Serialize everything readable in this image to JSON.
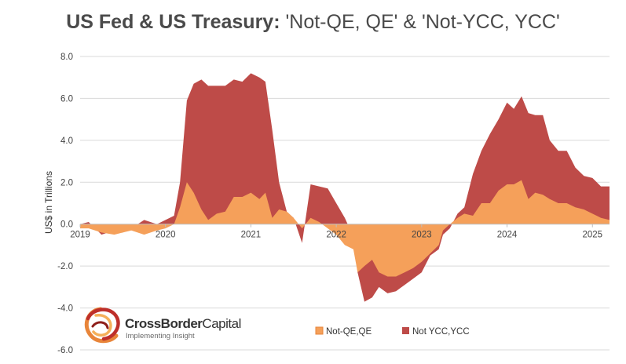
{
  "title": {
    "bold": "US Fed & US Treasury:",
    "rest": " 'Not-QE, QE' & 'Not-YCC, YCC'"
  },
  "logo": {
    "name_bold": "CrossBorder",
    "name_light": "Capital",
    "tagline": "Implementing Insight"
  },
  "colors": {
    "qe": "#F5A05A",
    "qe_edge": "#E8853A",
    "ycc": "#BE4B48",
    "grid": "#d9d9d9",
    "zero_axis": "#bfbfbf"
  },
  "chart_data": {
    "type": "area",
    "title": "US Fed & US Treasury: 'Not-QE, QE' & 'Not-YCC, YCC'",
    "ylabel": "US$ in Trillions",
    "xlabel": "",
    "ylim": [
      -6,
      8
    ],
    "xlim": [
      2019.0,
      2025.2
    ],
    "yticks": [
      "8.0",
      "6.0",
      "4.0",
      "2.0",
      "0.0",
      "-2.0",
      "-4.0",
      "-6.0"
    ],
    "xticks": [
      "2019",
      "2020",
      "2021",
      "2022",
      "2023",
      "2024",
      "2025"
    ],
    "grid": "horizontal",
    "legend_position": "bottom-center",
    "series": [
      {
        "name": "Not YCC,YCC",
        "x": [
          2019.0,
          2019.1,
          2019.25,
          2019.4,
          2019.5,
          2019.6,
          2019.75,
          2019.9,
          2020.0,
          2020.1,
          2020.17,
          2020.25,
          2020.33,
          2020.42,
          2020.5,
          2020.6,
          2020.7,
          2020.8,
          2020.9,
          2021.0,
          2021.1,
          2021.17,
          2021.25,
          2021.33,
          2021.42,
          2021.5,
          2021.6,
          2021.7,
          2021.8,
          2021.9,
          2022.0,
          2022.1,
          2022.2,
          2022.25,
          2022.33,
          2022.42,
          2022.5,
          2022.6,
          2022.7,
          2022.8,
          2022.9,
          2023.0,
          2023.1,
          2023.2,
          2023.25,
          2023.33,
          2023.42,
          2023.5,
          2023.6,
          2023.7,
          2023.8,
          2023.9,
          2024.0,
          2024.08,
          2024.17,
          2024.25,
          2024.33,
          2024.42,
          2024.5,
          2024.6,
          2024.7,
          2024.8,
          2024.9,
          2025.0,
          2025.1,
          2025.2
        ],
        "values": [
          0.0,
          0.1,
          -0.5,
          -0.3,
          -0.4,
          -0.2,
          0.2,
          0.0,
          0.2,
          0.4,
          2.0,
          5.9,
          6.7,
          6.9,
          6.6,
          6.6,
          6.6,
          6.9,
          6.8,
          7.2,
          7.0,
          6.8,
          4.5,
          2.0,
          0.6,
          0.3,
          -0.9,
          1.9,
          1.8,
          1.7,
          1.0,
          0.3,
          -0.6,
          -2.3,
          -3.7,
          -3.5,
          -3.0,
          -3.3,
          -3.2,
          -2.9,
          -2.6,
          -2.3,
          -1.5,
          -1.2,
          -0.5,
          -0.2,
          0.5,
          0.8,
          2.4,
          3.5,
          4.3,
          5.0,
          5.8,
          5.5,
          6.1,
          5.3,
          5.2,
          5.2,
          4.0,
          3.5,
          3.5,
          2.7,
          2.3,
          2.2,
          1.8,
          1.8
        ]
      },
      {
        "name": "Not-QE,QE",
        "x": [
          2019.0,
          2019.1,
          2019.25,
          2019.4,
          2019.5,
          2019.6,
          2019.75,
          2019.9,
          2020.0,
          2020.1,
          2020.17,
          2020.25,
          2020.33,
          2020.42,
          2020.5,
          2020.6,
          2020.7,
          2020.8,
          2020.9,
          2021.0,
          2021.1,
          2021.17,
          2021.25,
          2021.33,
          2021.42,
          2021.5,
          2021.6,
          2021.7,
          2021.8,
          2021.9,
          2022.0,
          2022.1,
          2022.2,
          2022.25,
          2022.33,
          2022.42,
          2022.5,
          2022.6,
          2022.7,
          2022.8,
          2022.9,
          2023.0,
          2023.1,
          2023.2,
          2023.25,
          2023.33,
          2023.42,
          2023.5,
          2023.6,
          2023.7,
          2023.8,
          2023.9,
          2024.0,
          2024.08,
          2024.17,
          2024.25,
          2024.33,
          2024.42,
          2024.5,
          2024.6,
          2024.7,
          2024.8,
          2024.9,
          2025.0,
          2025.1,
          2025.2
        ],
        "values": [
          -0.2,
          -0.2,
          -0.4,
          -0.5,
          -0.4,
          -0.3,
          -0.5,
          -0.3,
          -0.2,
          0.0,
          0.8,
          2.0,
          1.5,
          0.7,
          0.2,
          0.5,
          0.6,
          1.3,
          1.3,
          1.5,
          1.2,
          1.5,
          0.3,
          0.7,
          0.6,
          0.3,
          -0.2,
          0.3,
          0.1,
          -0.2,
          -0.5,
          -1.0,
          -1.2,
          -2.3,
          -2.0,
          -1.7,
          -2.3,
          -2.5,
          -2.5,
          -2.3,
          -2.1,
          -1.8,
          -1.4,
          -1.0,
          -0.3,
          0.0,
          0.3,
          0.5,
          0.4,
          1.0,
          1.0,
          1.6,
          1.9,
          1.9,
          2.1,
          1.2,
          1.5,
          1.4,
          1.2,
          1.0,
          1.0,
          0.8,
          0.7,
          0.5,
          0.3,
          0.2
        ]
      }
    ]
  }
}
